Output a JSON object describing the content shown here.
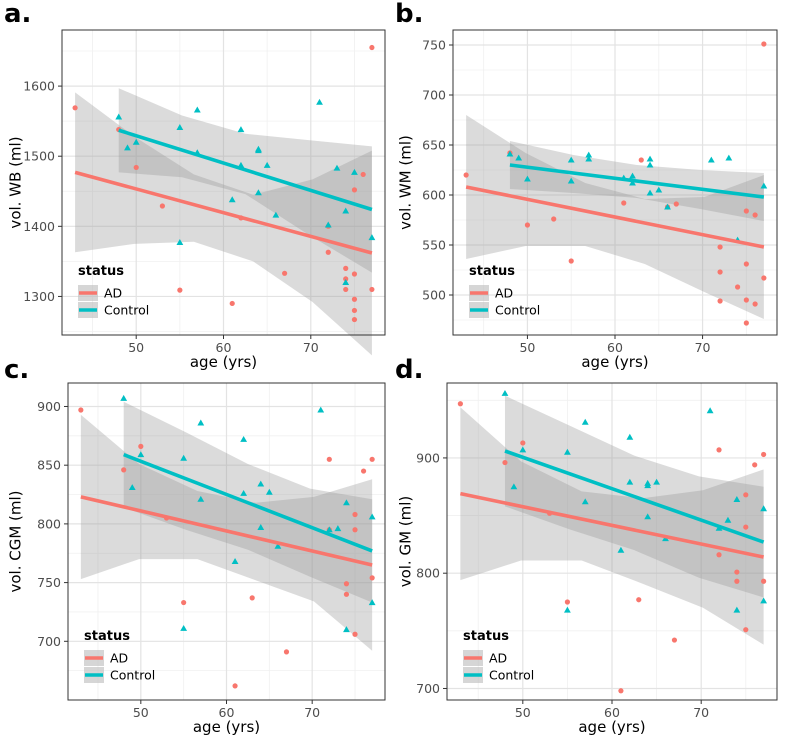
{
  "chart_data": [
    {
      "type": "scatter",
      "letter": "a.",
      "xlabel": "age (yrs)",
      "ylabel": "vol. WB (ml)",
      "xlim": [
        41.5,
        78.5
      ],
      "ylim": [
        1245,
        1680
      ],
      "xticks": [
        50,
        60,
        70
      ],
      "yticks": [
        1300,
        1400,
        1500,
        1600
      ],
      "grid": true,
      "legend": {
        "title": "status",
        "position": "bottom-left",
        "entries": [
          "AD",
          "Control"
        ]
      },
      "series": [
        {
          "name": "AD",
          "color": "#F8766D",
          "marker": "circle",
          "points": [
            [
              43,
              1569
            ],
            [
              48,
              1538
            ],
            [
              50,
              1484
            ],
            [
              53,
              1429
            ],
            [
              55,
              1309
            ],
            [
              61,
              1290
            ],
            [
              62,
              1412
            ],
            [
              67,
              1333
            ],
            [
              72,
              1363
            ],
            [
              72,
              1400
            ],
            [
              74,
              1340
            ],
            [
              74,
              1310
            ],
            [
              74,
              1325
            ],
            [
              75,
              1452
            ],
            [
              75,
              1332
            ],
            [
              75,
              1280
            ],
            [
              75,
              1267
            ],
            [
              75,
              1296
            ],
            [
              76,
              1474
            ],
            [
              77,
              1655
            ],
            [
              77,
              1310
            ]
          ],
          "fit": {
            "x": [
              43,
              77
            ],
            "y": [
              1477,
              1362
            ]
          },
          "band": {
            "upper": [
              1591,
              1528,
              1474,
              1445,
              1467,
              1508
            ],
            "lower": [
              1363,
              1375,
              1378,
              1350,
              1292,
              1216
            ]
          }
        },
        {
          "name": "Control",
          "color": "#00BFC4",
          "marker": "triangle",
          "points": [
            [
              48,
              1556
            ],
            [
              49,
              1512
            ],
            [
              50,
              1520
            ],
            [
              55,
              1541
            ],
            [
              55,
              1377
            ],
            [
              57,
              1566
            ],
            [
              57,
              1505
            ],
            [
              61,
              1438
            ],
            [
              62,
              1538
            ],
            [
              62,
              1487
            ],
            [
              64,
              1508
            ],
            [
              64,
              1510
            ],
            [
              64,
              1448
            ],
            [
              65,
              1487
            ],
            [
              66,
              1416
            ],
            [
              71,
              1577
            ],
            [
              72,
              1402
            ],
            [
              73,
              1483
            ],
            [
              74,
              1422
            ],
            [
              74,
              1320
            ],
            [
              75,
              1477
            ],
            [
              77,
              1384
            ]
          ],
          "fit": {
            "x": [
              48,
              77
            ],
            "y": [
              1537,
              1424
            ]
          },
          "band": {
            "upper": [
              1597,
              1558,
              1532,
              1523,
              1514
            ],
            "lower": [
              1477,
              1470,
              1446,
              1388,
              1334
            ]
          }
        }
      ]
    },
    {
      "type": "scatter",
      "letter": "b.",
      "xlabel": "age (yrs)",
      "ylabel": "vol. WM (ml)",
      "xlim": [
        41.5,
        78.5
      ],
      "ylim": [
        460,
        765
      ],
      "xticks": [
        50,
        60,
        70
      ],
      "yticks": [
        500,
        550,
        600,
        650,
        700,
        750
      ],
      "grid": true,
      "legend": {
        "title": "status",
        "position": "bottom-left",
        "entries": [
          "AD",
          "Control"
        ]
      },
      "series": [
        {
          "name": "AD",
          "color": "#F8766D",
          "marker": "circle",
          "points": [
            [
              43,
              620
            ],
            [
              48,
              642
            ],
            [
              50,
              570
            ],
            [
              53,
              576
            ],
            [
              55,
              534
            ],
            [
              61,
              592
            ],
            [
              63,
              635
            ],
            [
              66,
              588
            ],
            [
              67,
              591
            ],
            [
              72,
              548
            ],
            [
              72,
              494
            ],
            [
              72,
              523
            ],
            [
              74,
              508
            ],
            [
              75,
              495
            ],
            [
              75,
              584
            ],
            [
              75,
              531
            ],
            [
              75,
              472
            ],
            [
              76,
              580
            ],
            [
              76,
              491
            ],
            [
              77,
              517
            ],
            [
              77,
              751
            ]
          ],
          "fit": {
            "x": [
              43,
              77
            ],
            "y": [
              608,
              548
            ]
          },
          "band": {
            "upper": [
              680,
              642,
              612,
              596,
              598,
              620
            ],
            "lower": [
              536,
              549,
              549,
              531,
              503,
              476
            ]
          }
        },
        {
          "name": "Control",
          "color": "#00BFC4",
          "marker": "triangle",
          "points": [
            [
              48,
              641
            ],
            [
              49,
              637
            ],
            [
              50,
              616
            ],
            [
              55,
              635
            ],
            [
              55,
              614
            ],
            [
              57,
              640
            ],
            [
              57,
              636
            ],
            [
              61,
              617
            ],
            [
              62,
              619
            ],
            [
              62,
              612
            ],
            [
              64,
              636
            ],
            [
              64,
              630
            ],
            [
              64,
              602
            ],
            [
              65,
              605
            ],
            [
              66,
              588
            ],
            [
              71,
              635
            ],
            [
              73,
              637
            ],
            [
              74,
              555
            ],
            [
              77,
              609
            ]
          ],
          "fit": {
            "x": [
              48,
              77
            ],
            "y": [
              630,
              598
            ]
          },
          "band": {
            "upper": [
              654,
              640,
              630,
              625,
              622
            ],
            "lower": [
              606,
              602,
              597,
              586,
              574
            ]
          }
        }
      ]
    },
    {
      "type": "scatter",
      "letter": "c.",
      "xlabel": "age (yrs)",
      "ylabel": "vol. CGM (ml)",
      "xlim": [
        41.5,
        78.5
      ],
      "ylim": [
        650,
        920
      ],
      "xticks": [
        50,
        60,
        70
      ],
      "yticks": [
        700,
        750,
        800,
        850,
        900
      ],
      "grid": true,
      "legend": {
        "title": "status",
        "position": "bottom-left",
        "entries": [
          "AD",
          "Control"
        ]
      },
      "series": [
        {
          "name": "AD",
          "color": "#F8766D",
          "marker": "circle",
          "points": [
            [
              43,
              897
            ],
            [
              48,
              846
            ],
            [
              50,
              866
            ],
            [
              53,
              805
            ],
            [
              55,
              733
            ],
            [
              61,
              662
            ],
            [
              63,
              737
            ],
            [
              67,
              691
            ],
            [
              72,
              855
            ],
            [
              72,
              795
            ],
            [
              74,
              749
            ],
            [
              74,
              740
            ],
            [
              75,
              808
            ],
            [
              75,
              795
            ],
            [
              75,
              706
            ],
            [
              76,
              845
            ],
            [
              77,
              855
            ],
            [
              77,
              754
            ]
          ],
          "fit": {
            "x": [
              43,
              77
            ],
            "y": [
              823,
              765
            ]
          },
          "band": {
            "upper": [
              893,
              851,
              828,
              818,
              823,
              838
            ],
            "lower": [
              753,
              770,
              770,
              752,
              734,
              692
            ]
          }
        },
        {
          "name": "Control",
          "color": "#00BFC4",
          "marker": "triangle",
          "points": [
            [
              48,
              907
            ],
            [
              49,
              831
            ],
            [
              50,
              859
            ],
            [
              55,
              856
            ],
            [
              55,
              711
            ],
            [
              57,
              886
            ],
            [
              57,
              821
            ],
            [
              61,
              768
            ],
            [
              62,
              872
            ],
            [
              62,
              826
            ],
            [
              64,
              834
            ],
            [
              64,
              797
            ],
            [
              65,
              827
            ],
            [
              66,
              781
            ],
            [
              71,
              897
            ],
            [
              72,
              795
            ],
            [
              73,
              796
            ],
            [
              74,
              818
            ],
            [
              74,
              710
            ],
            [
              77,
              806
            ],
            [
              77,
              733
            ]
          ],
          "fit": {
            "x": [
              48,
              77
            ],
            "y": [
              859,
              777
            ]
          },
          "band": {
            "upper": [
              904,
              878,
              851,
              830,
              821
            ],
            "lower": [
              814,
              795,
              778,
              755,
              733
            ]
          }
        }
      ]
    },
    {
      "type": "scatter",
      "letter": "d.",
      "xlabel": "age (yrs)",
      "ylabel": "vol. GM (ml)",
      "xlim": [
        41.5,
        78.5
      ],
      "ylim": [
        690,
        965
      ],
      "xticks": [
        50,
        60,
        70
      ],
      "yticks": [
        700,
        800,
        900
      ],
      "grid": true,
      "legend": {
        "title": "status",
        "position": "bottom-left",
        "entries": [
          "AD",
          "Control"
        ]
      },
      "series": [
        {
          "name": "AD",
          "color": "#F8766D",
          "marker": "circle",
          "points": [
            [
              43,
              947
            ],
            [
              48,
              896
            ],
            [
              50,
              913
            ],
            [
              53,
              852
            ],
            [
              55,
              775
            ],
            [
              61,
              698
            ],
            [
              63,
              777
            ],
            [
              67,
              742
            ],
            [
              72,
              907
            ],
            [
              72,
              816
            ],
            [
              74,
              801
            ],
            [
              74,
              793
            ],
            [
              75,
              868
            ],
            [
              75,
              840
            ],
            [
              75,
              751
            ],
            [
              76,
              894
            ],
            [
              77,
              903
            ],
            [
              77,
              793
            ]
          ],
          "fit": {
            "x": [
              43,
              77
            ],
            "y": [
              869,
              814
            ]
          },
          "band": {
            "upper": [
              944,
              897,
              871,
              865,
              872,
              890
            ],
            "lower": [
              794,
              811,
              811,
              791,
              770,
              738
            ]
          }
        },
        {
          "name": "Control",
          "color": "#00BFC4",
          "marker": "triangle",
          "points": [
            [
              48,
              956
            ],
            [
              49,
              875
            ],
            [
              50,
              907
            ],
            [
              55,
              905
            ],
            [
              55,
              768
            ],
            [
              57,
              931
            ],
            [
              57,
              862
            ],
            [
              61,
              820
            ],
            [
              62,
              918
            ],
            [
              62,
              879
            ],
            [
              64,
              878
            ],
            [
              64,
              876
            ],
            [
              64,
              849
            ],
            [
              65,
              879
            ],
            [
              66,
              830
            ],
            [
              71,
              941
            ],
            [
              72,
              839
            ],
            [
              73,
              846
            ],
            [
              74,
              864
            ],
            [
              74,
              768
            ],
            [
              77,
              856
            ],
            [
              77,
              776
            ]
          ],
          "fit": {
            "x": [
              48,
              77
            ],
            "y": [
              906,
              827
            ]
          },
          "band": {
            "upper": [
              954,
              928,
              902,
              884,
              875
            ],
            "lower": [
              858,
              838,
              820,
              796,
              779
            ]
          }
        }
      ]
    }
  ]
}
